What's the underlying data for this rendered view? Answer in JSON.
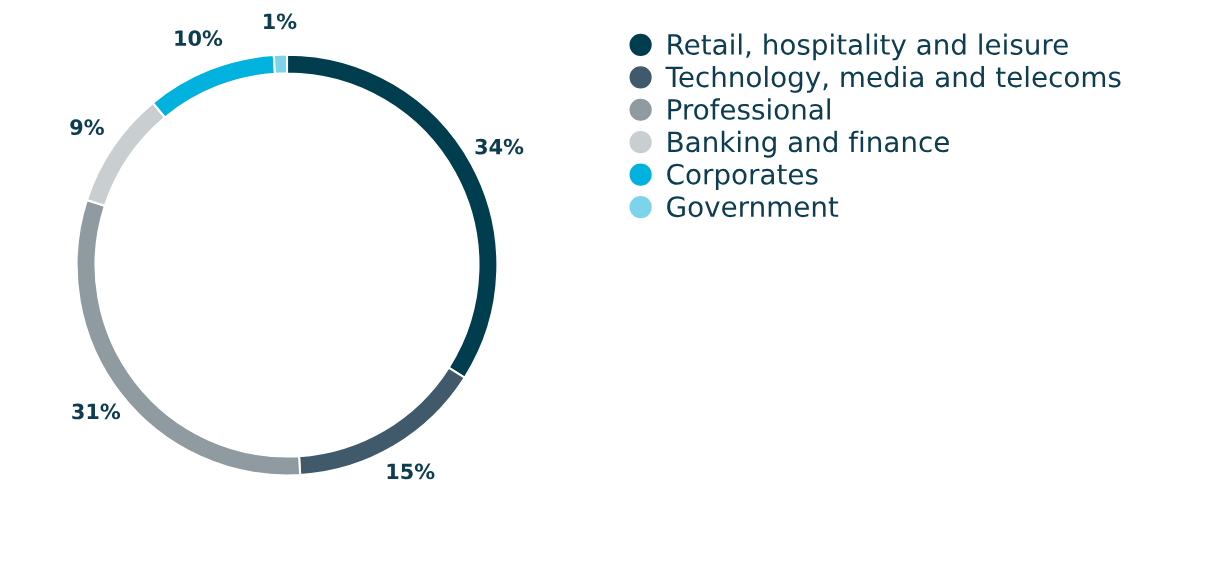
{
  "chart_data": {
    "type": "donut",
    "categories": [
      "Retail, hospitality and leisure",
      "Technology, media and telecoms",
      "Professional",
      "Banking and finance",
      "Corporates",
      "Government"
    ],
    "values": [
      34,
      15,
      31,
      9,
      10,
      1
    ],
    "colors": [
      "#003d4f",
      "#415a6b",
      "#8f9aa1",
      "#c9ced1",
      "#00b2dd",
      "#7dd3ea"
    ],
    "value_labels": [
      "34%",
      "15%",
      "31%",
      "9%",
      "10%",
      "1%"
    ],
    "legend": "right"
  }
}
